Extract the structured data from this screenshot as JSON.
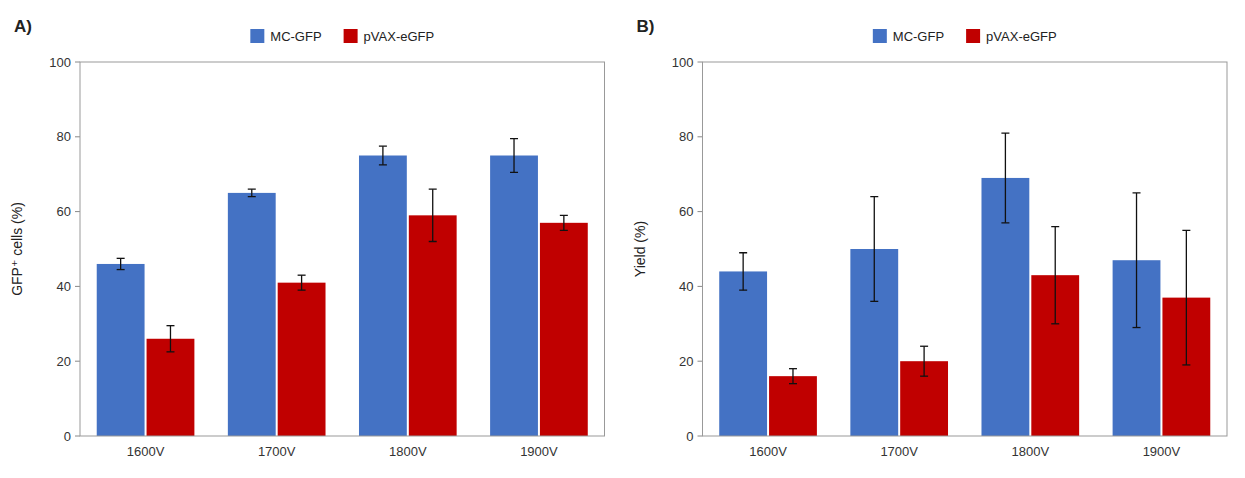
{
  "chart_data": [
    {
      "type": "bar",
      "title": "A)",
      "ylabel": "GFP⁺ cells (%)",
      "categories": [
        "1600V",
        "1700V",
        "1800V",
        "1900V"
      ],
      "series": [
        {
          "name": "MC-GFP",
          "color": "#4472C4",
          "values": [
            46,
            65,
            75,
            75
          ],
          "errors": [
            1.5,
            1.0,
            2.5,
            4.5
          ]
        },
        {
          "name": "pVAX-eGFP",
          "color": "#C00000",
          "values": [
            26,
            41,
            59,
            57
          ],
          "errors": [
            3.5,
            2.0,
            7.0,
            2.0
          ]
        }
      ],
      "ylim": [
        0,
        100
      ],
      "yticks": [
        0,
        20,
        40,
        60,
        80,
        100
      ],
      "grid": false,
      "legend": "top"
    },
    {
      "type": "bar",
      "title": "B)",
      "ylabel": "Yield (%)",
      "categories": [
        "1600V",
        "1700V",
        "1800V",
        "1900V"
      ],
      "series": [
        {
          "name": "MC-GFP",
          "color": "#4472C4",
          "values": [
            44,
            50,
            69,
            47
          ],
          "errors": [
            5.0,
            14.0,
            12.0,
            18.0
          ]
        },
        {
          "name": "pVAX-eGFP",
          "color": "#C00000",
          "values": [
            16,
            20,
            43,
            37
          ],
          "errors": [
            2.0,
            4.0,
            13.0,
            18.0
          ]
        }
      ],
      "ylim": [
        0,
        100
      ],
      "yticks": [
        0,
        20,
        40,
        60,
        80,
        100
      ],
      "grid": false,
      "legend": "top"
    }
  ]
}
